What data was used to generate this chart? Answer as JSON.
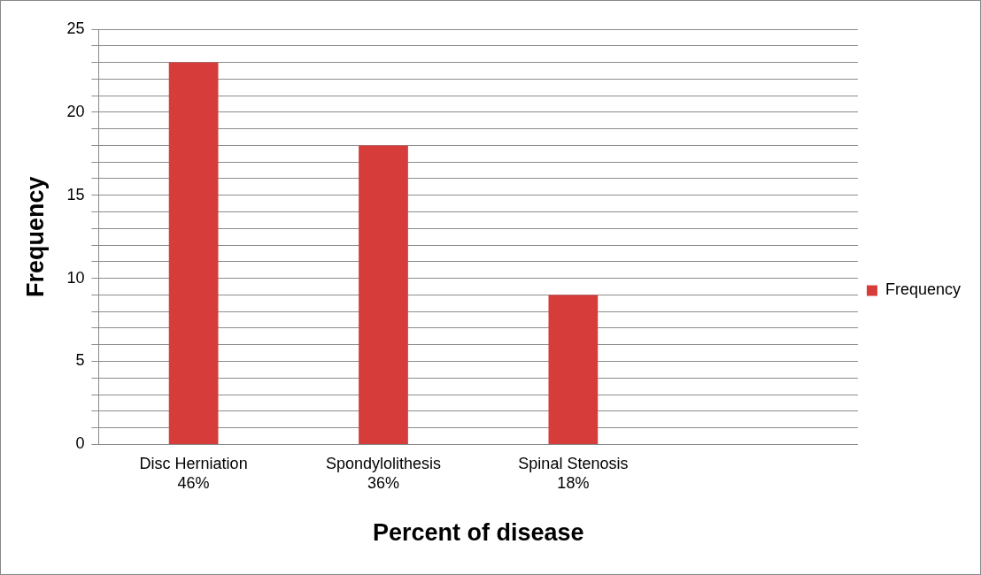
{
  "chart_data": {
    "type": "bar",
    "xlabel": "Percent of disease",
    "ylabel": "Frequency",
    "categories": [
      "Disc Herniation\n46%",
      "Spondylolithesis\n36%",
      "Spinal Stenosis\n18%",
      null
    ],
    "series": [
      {
        "name": "Frequency",
        "color": "#d63c3a",
        "values": [
          23,
          18,
          9,
          null
        ]
      }
    ],
    "ylim": [
      0,
      25
    ],
    "yticks": [
      0,
      {
        "value": 1,
        "label": null
      },
      {
        "value": 2,
        "label": null
      },
      {
        "value": 3,
        "label": null
      },
      {
        "value": 4,
        "label": null
      },
      5,
      {
        "value": 6,
        "label": null
      },
      {
        "value": 7,
        "label": null
      },
      {
        "value": 8,
        "label": null
      },
      {
        "value": 9,
        "label": null
      },
      10,
      {
        "value": 11,
        "label": null
      },
      {
        "value": 12,
        "label": null
      },
      {
        "value": 13,
        "label": null
      },
      {
        "value": 14,
        "label": null
      },
      15,
      {
        "value": 16,
        "label": null
      },
      {
        "value": 17,
        "label": null
      },
      {
        "value": 18,
        "label": null
      },
      {
        "value": 19,
        "label": null
      },
      20,
      {
        "value": 21,
        "label": null
      },
      {
        "value": 22,
        "label": null
      },
      {
        "value": 23,
        "label": null
      },
      {
        "value": 24,
        "label": null
      },
      25
    ],
    "grid": "y",
    "legend": "right"
  }
}
